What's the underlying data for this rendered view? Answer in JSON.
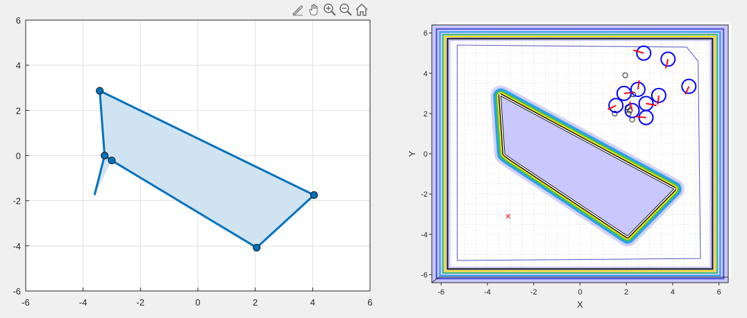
{
  "toolbar": {
    "buttons": [
      {
        "name": "brush-icon"
      },
      {
        "name": "pan-hand-icon"
      },
      {
        "name": "zoom-in-icon"
      },
      {
        "name": "zoom-out-icon"
      },
      {
        "name": "home-icon"
      }
    ]
  },
  "colors": {
    "polygon_line": "#0072bd",
    "polygon_fill": "#cfe3f1",
    "obstacle_fill": "#c8c8ff",
    "obstacle_edge": "#5050c0",
    "circle": "#0000ff",
    "heading": "#ff0000",
    "target": "#ff0000"
  },
  "chart_data": [
    {
      "type": "line",
      "title": "",
      "xlabel": "",
      "ylabel": "",
      "xlim": [
        -6,
        6
      ],
      "ylim": [
        -6,
        6
      ],
      "xticks": [
        -6,
        -4,
        -2,
        0,
        2,
        4,
        6
      ],
      "yticks": [
        -6,
        -4,
        -2,
        0,
        2,
        4,
        6
      ],
      "grid": true,
      "polygon": [
        [
          -3.42,
          2.87
        ],
        [
          4.05,
          -1.75
        ],
        [
          2.05,
          -4.08
        ],
        [
          -3.0,
          -0.22
        ],
        [
          -3.25,
          0.0
        ]
      ],
      "tail": [
        [
          -3.25,
          0.0
        ],
        [
          -3.6,
          -1.75
        ]
      ],
      "vertices": [
        [
          -3.42,
          2.87
        ],
        [
          -3.25,
          0.0
        ],
        [
          -3.0,
          -0.22
        ],
        [
          2.05,
          -4.08
        ],
        [
          4.05,
          -1.75
        ]
      ]
    },
    {
      "type": "scatter",
      "title": "",
      "xlabel": "X",
      "ylabel": "Y",
      "xlim": [
        -6.4,
        6.4
      ],
      "ylim": [
        -6.4,
        6.4
      ],
      "xticks": [
        -6,
        -4,
        -2,
        0,
        2,
        4,
        6
      ],
      "yticks": [
        -6,
        -4,
        -2,
        0,
        2,
        4,
        6
      ],
      "grid": true,
      "obstacle": [
        [
          -3.42,
          2.87
        ],
        [
          4.05,
          -1.75
        ],
        [
          2.05,
          -4.08
        ],
        [
          -3.0,
          -0.22
        ],
        [
          -3.25,
          0.0
        ]
      ],
      "boundary": [
        -5.6,
        5.6,
        -5.6,
        5.6
      ],
      "contour_offsets": [
        0.12,
        0.22,
        0.32,
        0.45,
        0.6
      ],
      "contour_colors": [
        "#1a1a1a",
        "#ffe000",
        "#40c060",
        "#2a9df4",
        "#4a4adc"
      ],
      "agents": [
        {
          "x": 2.75,
          "y": 5.0,
          "heading": [
            -0.45,
            0.15
          ]
        },
        {
          "x": 3.8,
          "y": 4.7,
          "heading": [
            -0.1,
            -0.45
          ]
        },
        {
          "x": 4.7,
          "y": 3.35,
          "heading": [
            -0.15,
            -0.4
          ]
        },
        {
          "x": 3.4,
          "y": 2.9,
          "heading": [
            -0.05,
            -0.45
          ]
        },
        {
          "x": 1.9,
          "y": 3.0,
          "heading": [
            0.45,
            0.05
          ]
        },
        {
          "x": 2.5,
          "y": 3.2,
          "heading": [
            0.05,
            0.45
          ]
        },
        {
          "x": 2.85,
          "y": 2.5,
          "heading": [
            0.45,
            -0.1
          ]
        },
        {
          "x": 2.25,
          "y": 2.15,
          "heading": [
            -0.1,
            0.45
          ]
        },
        {
          "x": 1.55,
          "y": 2.4,
          "heading": [
            -0.35,
            -0.2
          ]
        },
        {
          "x": 2.85,
          "y": 1.8,
          "heading": [
            -0.45,
            0.05
          ]
        }
      ],
      "small_circles": [
        [
          1.95,
          3.9
        ],
        [
          2.3,
          2.95
        ],
        [
          2.05,
          2.3
        ],
        [
          2.15,
          2.15
        ],
        [
          2.1,
          2.0
        ],
        [
          2.25,
          1.7
        ],
        [
          1.5,
          2.0
        ]
      ],
      "target": [
        -3.1,
        -3.1
      ]
    }
  ]
}
